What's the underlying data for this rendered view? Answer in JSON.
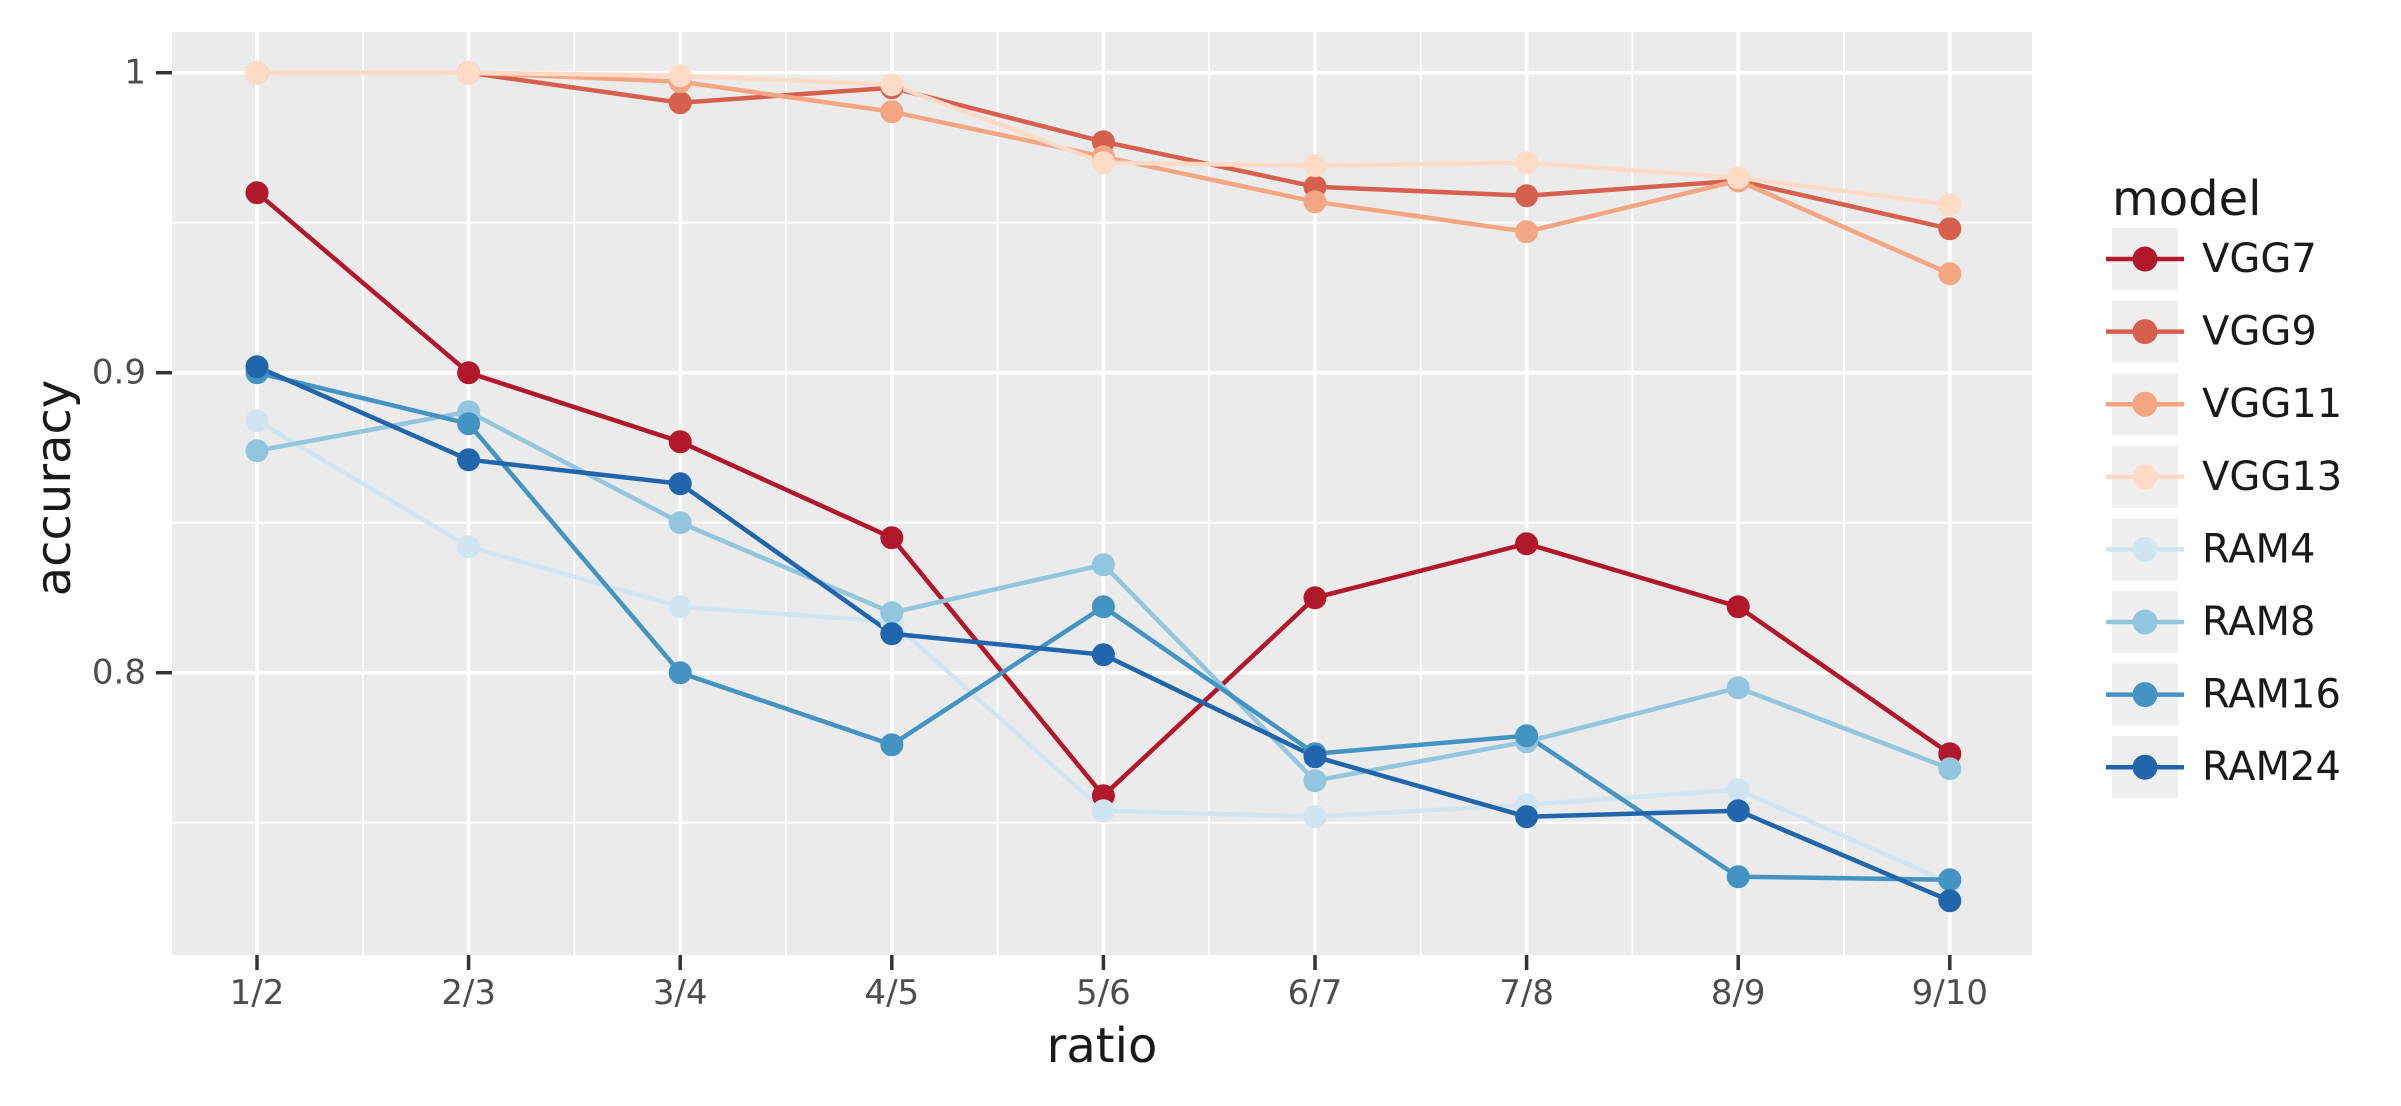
{
  "chart_data": {
    "type": "line",
    "title": "",
    "xlabel": "ratio",
    "ylabel": "accuracy",
    "legend_title": "model",
    "legend_position": "right",
    "grid": true,
    "panel_background": "#EBEBEB",
    "grid_color": "#FFFFFF",
    "tick_text_color": "#4D4D4D",
    "axis_title_color": "#1A1A1A",
    "x_categories": [
      "1/2",
      "2/3",
      "3/4",
      "4/5",
      "5/6",
      "6/7",
      "7/8",
      "8/9",
      "9/10"
    ],
    "y_tick_labels": [
      "1",
      "0.9",
      "0.8"
    ],
    "y_tick_values": [
      1.0,
      0.9,
      0.8
    ],
    "y_minor_values": [
      0.95,
      0.85,
      0.75
    ],
    "ylim": [
      0.706,
      1.014
    ],
    "series": [
      {
        "name": "VGG7",
        "color": "#B2182B",
        "values": [
          0.96,
          0.9,
          0.877,
          0.845,
          0.759,
          0.825,
          0.843,
          0.822,
          0.773
        ]
      },
      {
        "name": "VGG9",
        "color": "#D6604D",
        "values": [
          1.0,
          1.0,
          0.99,
          0.995,
          0.977,
          0.962,
          0.959,
          0.964,
          0.948
        ]
      },
      {
        "name": "VGG11",
        "color": "#F4A582",
        "values": [
          1.0,
          1.0,
          0.997,
          0.987,
          0.972,
          0.957,
          0.947,
          0.964,
          0.933
        ]
      },
      {
        "name": "VGG13",
        "color": "#FDDBC7",
        "values": [
          1.0,
          1.0,
          0.999,
          0.996,
          0.97,
          0.969,
          0.97,
          0.965,
          0.956
        ]
      },
      {
        "name": "RAM4",
        "color": "#D1E5F0",
        "values": [
          0.884,
          0.842,
          0.822,
          0.817,
          0.754,
          0.752,
          0.756,
          0.761,
          0.73
        ]
      },
      {
        "name": "RAM8",
        "color": "#92C5DE",
        "values": [
          0.874,
          0.887,
          0.85,
          0.82,
          0.836,
          0.764,
          0.777,
          0.795,
          0.768
        ]
      },
      {
        "name": "RAM16",
        "color": "#4393C3",
        "values": [
          0.9,
          0.883,
          0.8,
          0.776,
          0.822,
          0.773,
          0.779,
          0.732,
          0.731
        ]
      },
      {
        "name": "RAM24",
        "color": "#2166AC",
        "values": [
          0.902,
          0.871,
          0.863,
          0.813,
          0.806,
          0.772,
          0.752,
          0.754,
          0.724
        ]
      }
    ]
  }
}
